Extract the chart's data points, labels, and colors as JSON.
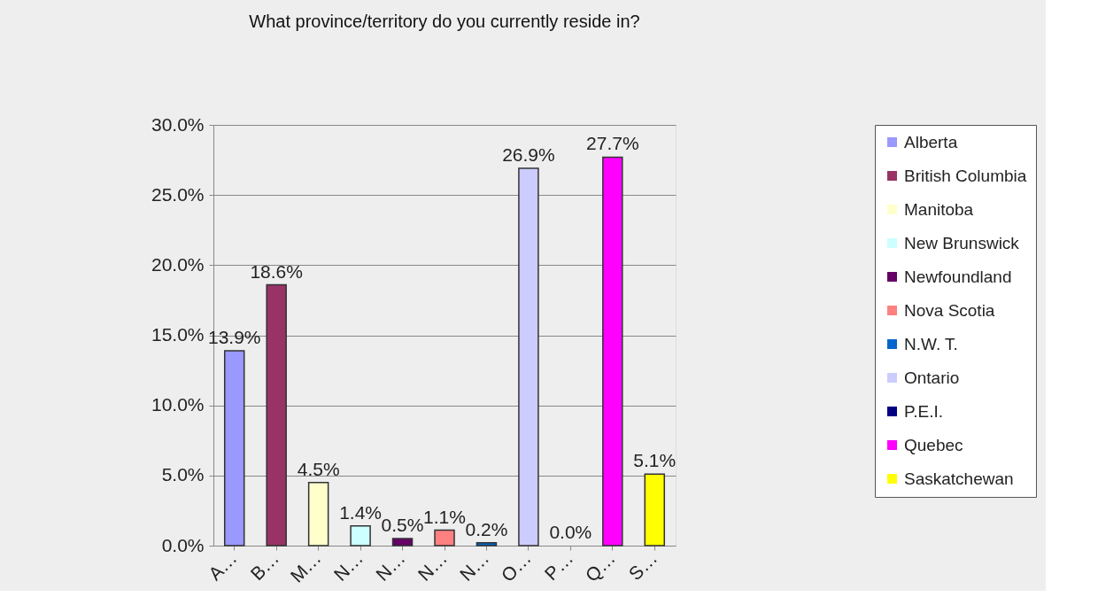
{
  "chart_data": {
    "type": "bar",
    "title": "What province/territory do you currently reside in?",
    "categories": [
      "A…",
      "B…",
      "M…",
      "N…",
      "N…",
      "N…",
      "N…",
      "O…",
      "P…",
      "Q…",
      "S…"
    ],
    "series": [
      {
        "name": "Alberta",
        "color": "#9999ff",
        "values": [
          13.9,
          null,
          null,
          null,
          null,
          null,
          null,
          null,
          null,
          null,
          null
        ],
        "value_labels": [
          "13.9%",
          null,
          null,
          null,
          null,
          null,
          null,
          null,
          null,
          null,
          null
        ]
      },
      {
        "name": "British Columbia",
        "color": "#993366",
        "values": [
          null,
          18.6,
          null,
          null,
          null,
          null,
          null,
          null,
          null,
          null,
          null
        ],
        "value_labels": [
          null,
          "18.6%",
          null,
          null,
          null,
          null,
          null,
          null,
          null,
          null,
          null
        ]
      },
      {
        "name": "Manitoba",
        "color": "#ffffcc",
        "values": [
          null,
          null,
          4.5,
          null,
          null,
          null,
          null,
          null,
          null,
          null,
          null
        ],
        "value_labels": [
          null,
          null,
          "4.5%",
          null,
          null,
          null,
          null,
          null,
          null,
          null,
          null
        ]
      },
      {
        "name": "New Brunswick",
        "color": "#ccffff",
        "values": [
          null,
          null,
          null,
          1.4,
          null,
          null,
          null,
          null,
          null,
          null,
          null
        ],
        "value_labels": [
          null,
          null,
          null,
          "1.4%",
          null,
          null,
          null,
          null,
          null,
          null,
          null
        ]
      },
      {
        "name": "Newfoundland",
        "color": "#660066",
        "values": [
          null,
          null,
          null,
          null,
          0.5,
          null,
          null,
          null,
          null,
          null,
          null
        ],
        "value_labels": [
          null,
          null,
          null,
          null,
          "0.5%",
          null,
          null,
          null,
          null,
          null,
          null
        ]
      },
      {
        "name": "Nova Scotia",
        "color": "#ff8080",
        "values": [
          null,
          null,
          null,
          null,
          null,
          1.1,
          null,
          null,
          null,
          null,
          null
        ],
        "value_labels": [
          null,
          null,
          null,
          null,
          null,
          "1.1%",
          null,
          null,
          null,
          null,
          null
        ]
      },
      {
        "name": "N.W. T.",
        "color": "#0066cc",
        "values": [
          null,
          null,
          null,
          null,
          null,
          null,
          0.2,
          null,
          null,
          null,
          null
        ],
        "value_labels": [
          null,
          null,
          null,
          null,
          null,
          null,
          "0.2%",
          null,
          null,
          null,
          null
        ]
      },
      {
        "name": "Ontario",
        "color": "#ccccff",
        "values": [
          null,
          null,
          null,
          null,
          null,
          null,
          null,
          26.9,
          null,
          null,
          null
        ],
        "value_labels": [
          null,
          null,
          null,
          null,
          null,
          null,
          null,
          "26.9%",
          null,
          null,
          null
        ]
      },
      {
        "name": "P.E.I.",
        "color": "#000080",
        "values": [
          null,
          null,
          null,
          null,
          null,
          null,
          null,
          null,
          0.0,
          null,
          null
        ],
        "value_labels": [
          null,
          null,
          null,
          null,
          null,
          null,
          null,
          null,
          "0.0%",
          null,
          null
        ]
      },
      {
        "name": "Quebec",
        "color": "#ff00ff",
        "values": [
          null,
          null,
          null,
          null,
          null,
          null,
          null,
          null,
          null,
          27.7,
          null
        ],
        "value_labels": [
          null,
          null,
          null,
          null,
          null,
          null,
          null,
          null,
          null,
          "27.7%",
          null
        ]
      },
      {
        "name": "Saskatchewan",
        "color": "#ffff00",
        "values": [
          null,
          null,
          null,
          null,
          null,
          null,
          null,
          null,
          null,
          null,
          5.1
        ],
        "value_labels": [
          null,
          null,
          null,
          null,
          null,
          null,
          null,
          null,
          null,
          null,
          "5.1%"
        ]
      }
    ],
    "ylim": [
      0,
      30
    ],
    "yticks": [
      {
        "value": 0,
        "label": "0.0%"
      },
      {
        "value": 5,
        "label": "5.0%"
      },
      {
        "value": 10,
        "label": "10.0%"
      },
      {
        "value": 15,
        "label": "15.0%"
      },
      {
        "value": 20,
        "label": "20.0%"
      },
      {
        "value": 25,
        "label": "25.0%"
      },
      {
        "value": 30,
        "label": "30.0%"
      }
    ],
    "grid": "y",
    "legend": "right"
  }
}
